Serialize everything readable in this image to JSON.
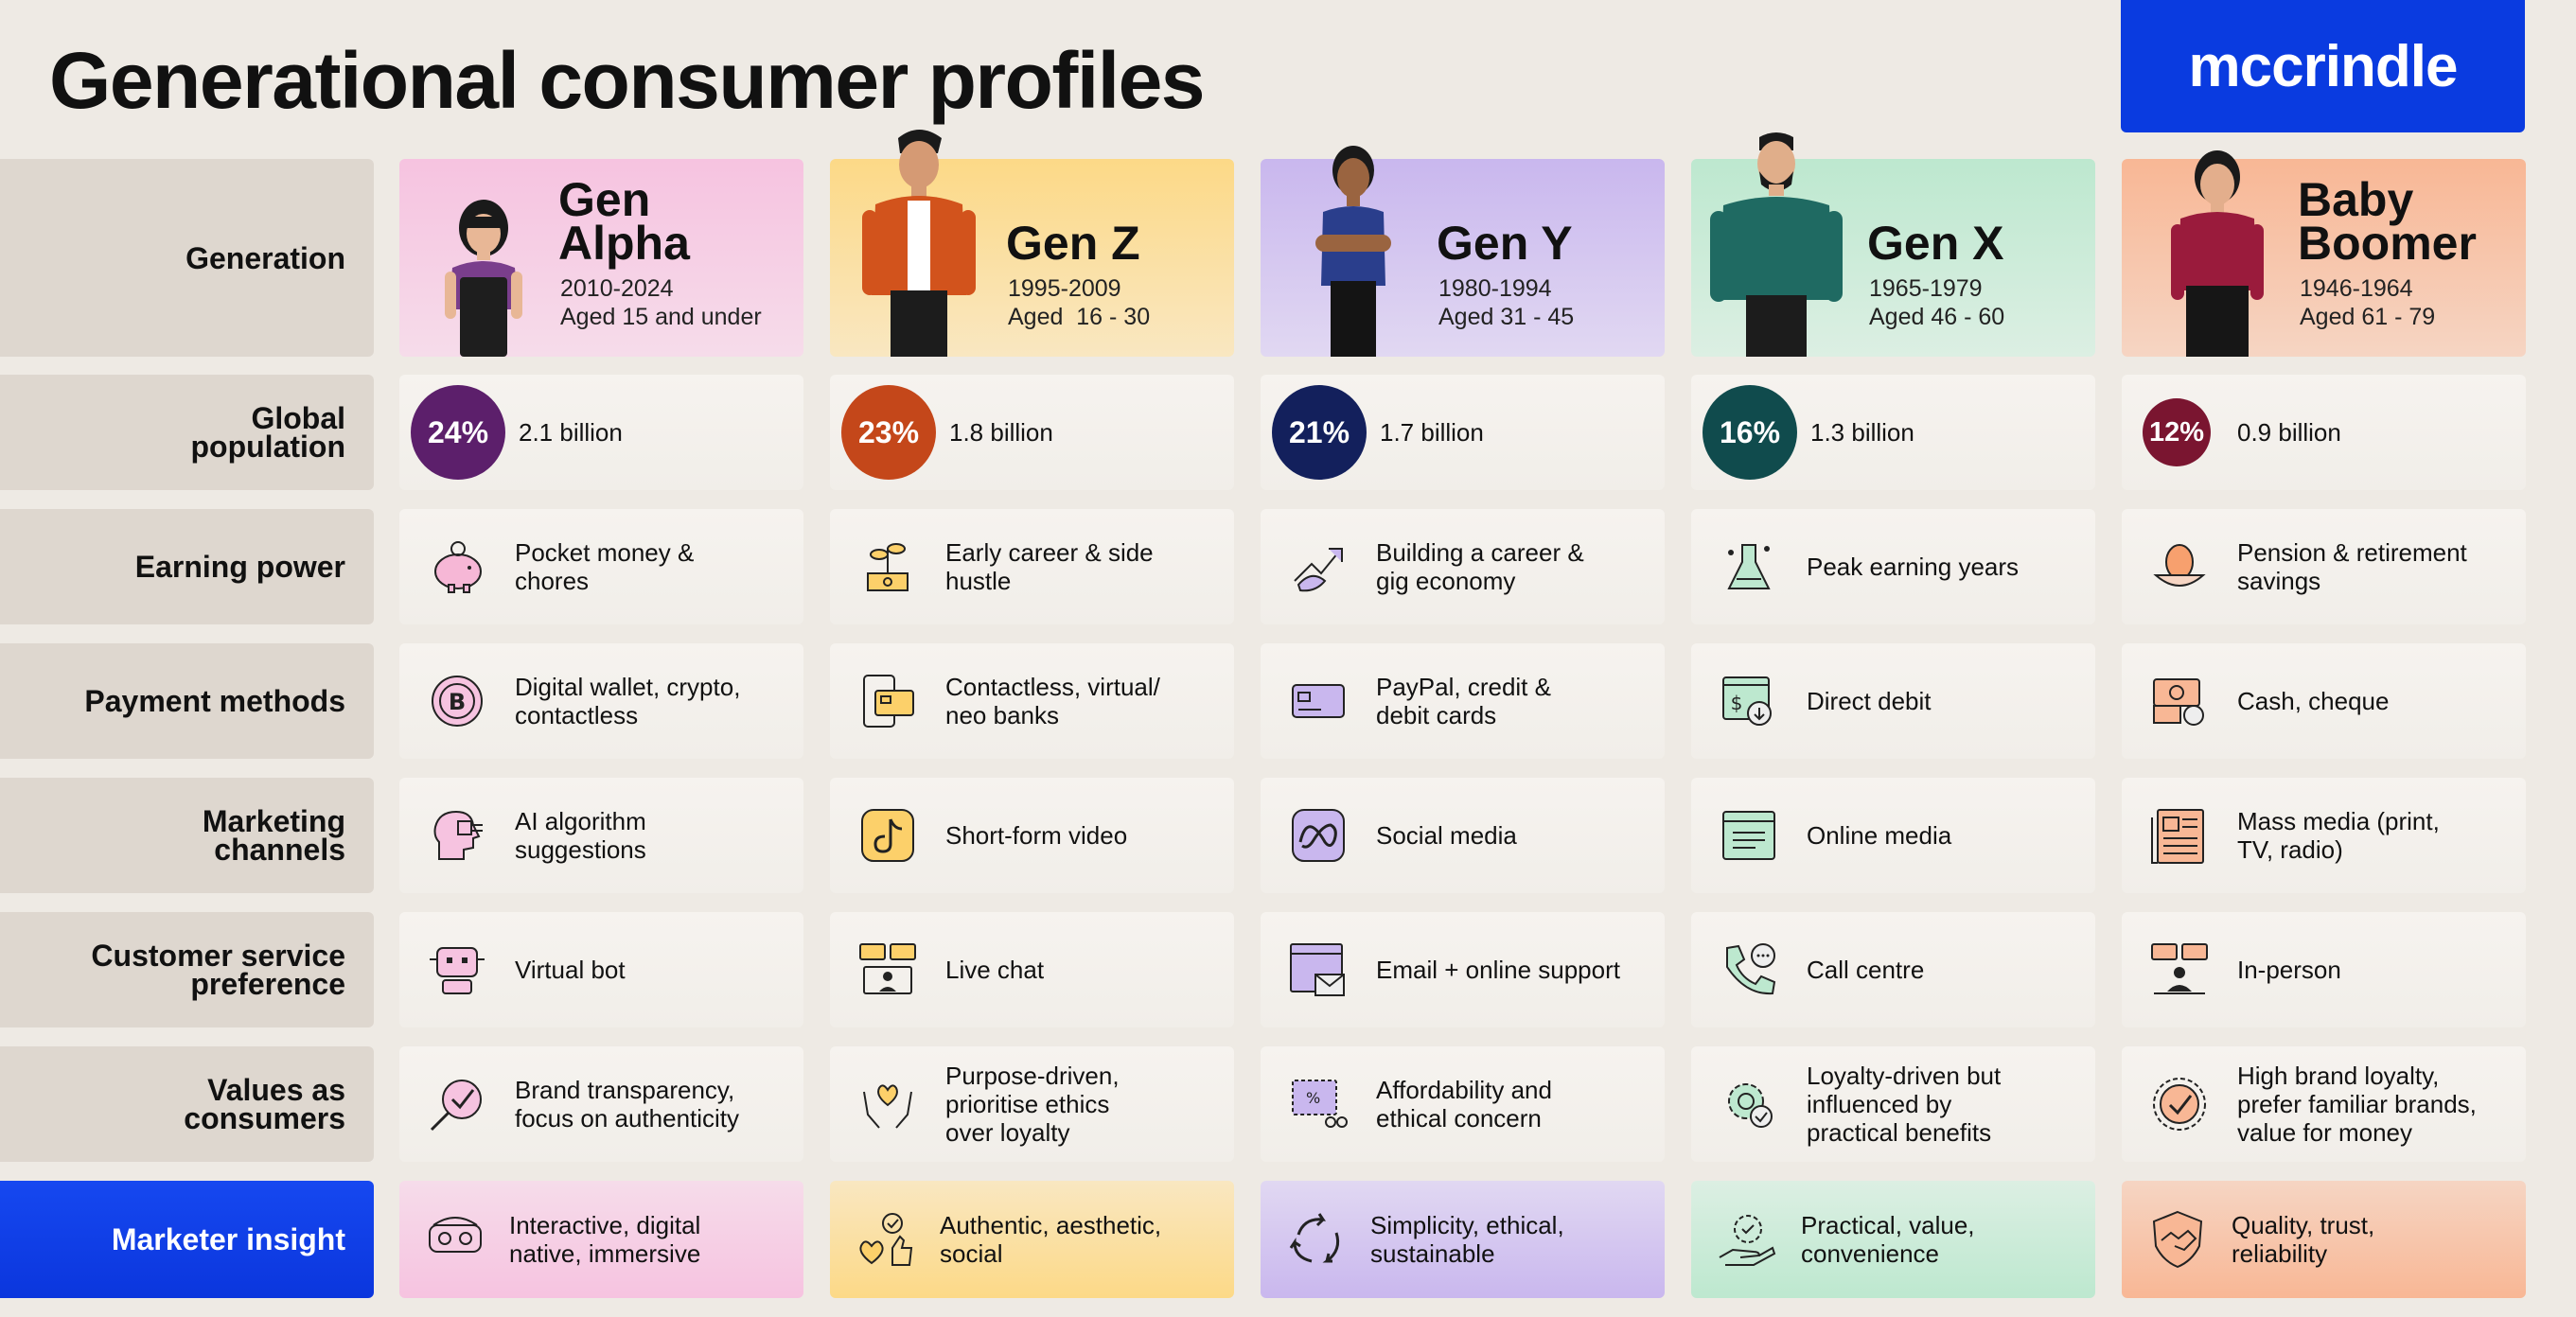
{
  "header": {
    "title": "Generational consumer profiles",
    "logo": "mccrindle"
  },
  "colors": {
    "alpha": "#F6C3E0",
    "z": "#FCD987",
    "y": "#C9B7EE",
    "x": "#BDE8CF",
    "boomer": "#F8B795",
    "brand": "#0A3BE0"
  },
  "row_labels": {
    "generation": "Generation",
    "population": "Global population",
    "earning": "Earning power",
    "payment": "Payment methods",
    "marketing": "Marketing channels",
    "service": "Customer service preference",
    "values": "Values as consumers",
    "insight": "Marketer insight"
  },
  "generations": [
    {
      "name": "Gen Alpha",
      "years": "2010-2024",
      "age": "Aged 15 and under",
      "pct": "24%",
      "pct_color": "#5C1F6B",
      "population": "2.1 billion",
      "earning": "Pocket money & chores",
      "earning_icon": "piggy-bank-icon",
      "payment": "Digital wallet, crypto, contactless",
      "payment_icon": "crypto-coin-icon",
      "marketing": "AI algorithm suggestions",
      "marketing_icon": "ai-head-icon",
      "service": "Virtual bot",
      "service_icon": "robot-icon",
      "values": "Brand transparency, focus on authenticity",
      "values_icon": "magnifier-check-icon",
      "insight": "Interactive, digital native, immersive",
      "insight_icon": "vr-headset-icon"
    },
    {
      "name": "Gen Z",
      "years": "1995-2009",
      "age": "Aged  16 - 30",
      "pct": "23%",
      "pct_color": "#C4471A",
      "population": "1.8 billion",
      "earning": "Early career & side hustle",
      "earning_icon": "laptop-plant-icon",
      "payment": "Contactless, virtual/ neo banks",
      "payment_icon": "phone-card-icon",
      "marketing": "Short-form video",
      "marketing_icon": "tiktok-icon",
      "service": "Live chat",
      "service_icon": "chat-bubbles-icon",
      "values": "Purpose-driven, prioritise ethics over loyalty",
      "values_icon": "hands-heart-icon",
      "insight": "Authentic, aesthetic, social",
      "insight_icon": "heart-thumbs-icon"
    },
    {
      "name": "Gen Y",
      "years": "1980-1994",
      "age": "Aged 31 - 45",
      "pct": "21%",
      "pct_color": "#13205C",
      "population": "1.7 billion",
      "earning": "Building a career & gig economy",
      "earning_icon": "handshake-arrow-icon",
      "payment": "PayPal, credit & debit cards",
      "payment_icon": "credit-card-icon",
      "marketing": "Social media",
      "marketing_icon": "meta-icon",
      "service": "Email + online support",
      "service_icon": "browser-mail-icon",
      "values": "Affordability and ethical concern",
      "values_icon": "coupon-scissors-icon",
      "insight": "Simplicity, ethical, sustainable",
      "insight_icon": "recycle-icon"
    },
    {
      "name": "Gen X",
      "years": "1965-1979",
      "age": "Aged 46 - 60",
      "pct": "16%",
      "pct_color": "#104B4D",
      "population": "1.3 billion",
      "earning": "Peak earning years",
      "earning_icon": "flask-icon",
      "payment": "Direct debit",
      "payment_icon": "dollar-download-icon",
      "marketing": "Online media",
      "marketing_icon": "web-page-icon",
      "service": "Call centre",
      "service_icon": "phone-call-icon",
      "values": "Loyalty-driven but influenced by practical benefits",
      "values_icon": "gear-check-icon",
      "insight": "Practical, value, convenience",
      "insight_icon": "hand-gear-icon"
    },
    {
      "name": "Baby Boomer",
      "years": "1946-1964",
      "age": "Aged 61 - 79",
      "pct": "12%",
      "pct_color": "#7A1530",
      "population": "0.9 billion",
      "earning": "Pension & retirement savings",
      "earning_icon": "nest-egg-icon",
      "payment": "Cash, cheque",
      "payment_icon": "cash-coins-icon",
      "marketing": "Mass media (print, TV, radio)",
      "marketing_icon": "newspaper-icon",
      "service": "In-person",
      "service_icon": "in-person-icon",
      "values": "High brand loyalty, prefer familiar brands, value for money",
      "values_icon": "badge-check-icon",
      "insight": "Quality, trust, reliability",
      "insight_icon": "shield-handshake-icon"
    }
  ]
}
